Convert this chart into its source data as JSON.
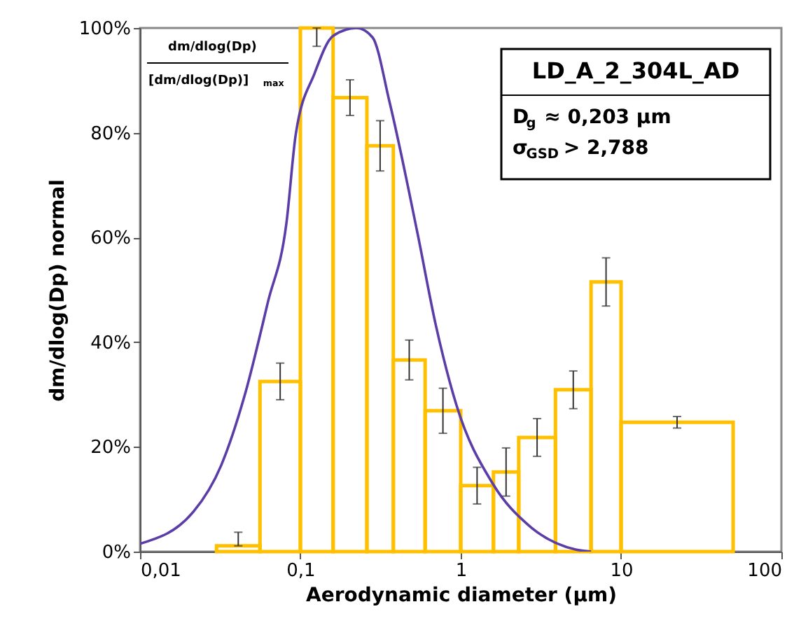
{
  "chart_data": {
    "type": "histogram",
    "bins": [
      0.03,
      0.056,
      0.1,
      0.16,
      0.26,
      0.38,
      0.6,
      1,
      1.6,
      2.3,
      3.9,
      6.5,
      10,
      50
    ],
    "values": [
      1.1,
      32.5,
      100,
      86.7,
      77.5,
      36.6,
      26.9,
      12.6,
      15.2,
      21.8,
      30.9,
      51.5,
      24.7
    ],
    "errors": [
      [
        1.1,
        3.7
      ],
      3.5,
      [
        96.5,
        100
      ],
      3.4,
      4.8,
      3.8,
      4.3,
      3.5,
      4.6,
      3.6,
      3.6,
      4.6,
      1.1
    ],
    "color": "#ffc000",
    "series": [
      {
        "type": "line",
        "color": "#5b3da8",
        "x": [
          0.01,
          0.0215,
          0.0321,
          0.045,
          0.0628,
          0.0819,
          0.0937,
          0.1225,
          0.16,
          0.224,
          0.282,
          0.359,
          0.536,
          0.7,
          0.94,
          1.59,
          2.68,
          5.2,
          6.5
        ],
        "values": [
          1.5,
          7.6,
          16.5,
          29.9,
          47.7,
          62.8,
          79.8,
          91.3,
          98.5,
          100,
          98.2,
          86,
          61,
          43.2,
          28,
          12.9,
          4.9,
          0.4,
          0
        ]
      }
    ],
    "xlabel": "Aerodynamic diameter (µm)",
    "ylabel": "dm/dlog(Dp) normal",
    "xlim": [
      0.01,
      100
    ],
    "log": "x",
    "xticks": [
      {
        "value": 0.01,
        "label": "0,01"
      },
      {
        "value": 0.1,
        "label": "0,1"
      },
      {
        "value": 1,
        "label": "1"
      },
      {
        "value": 10,
        "label": "10"
      },
      {
        "value": 100,
        "label": "100"
      }
    ],
    "ylim": [
      0,
      100
    ],
    "yticks": [
      {
        "value": 0,
        "label": "0%"
      },
      {
        "value": 20,
        "label": "20%"
      },
      {
        "value": 40,
        "label": "40%"
      },
      {
        "value": 60,
        "label": "60%"
      },
      {
        "value": 80,
        "label": "80%"
      },
      {
        "value": 100,
        "label": "100%"
      }
    ],
    "grid": false,
    "annotations": [
      "dm/dlog(Dp)",
      "[dm/dlog(Dp)]$_{max}$",
      "LD_A_2_304L_AD",
      "D$_{g}$ ≈  0,203   µm",
      "σ$_{GSD}$ > 2,788"
    ]
  }
}
